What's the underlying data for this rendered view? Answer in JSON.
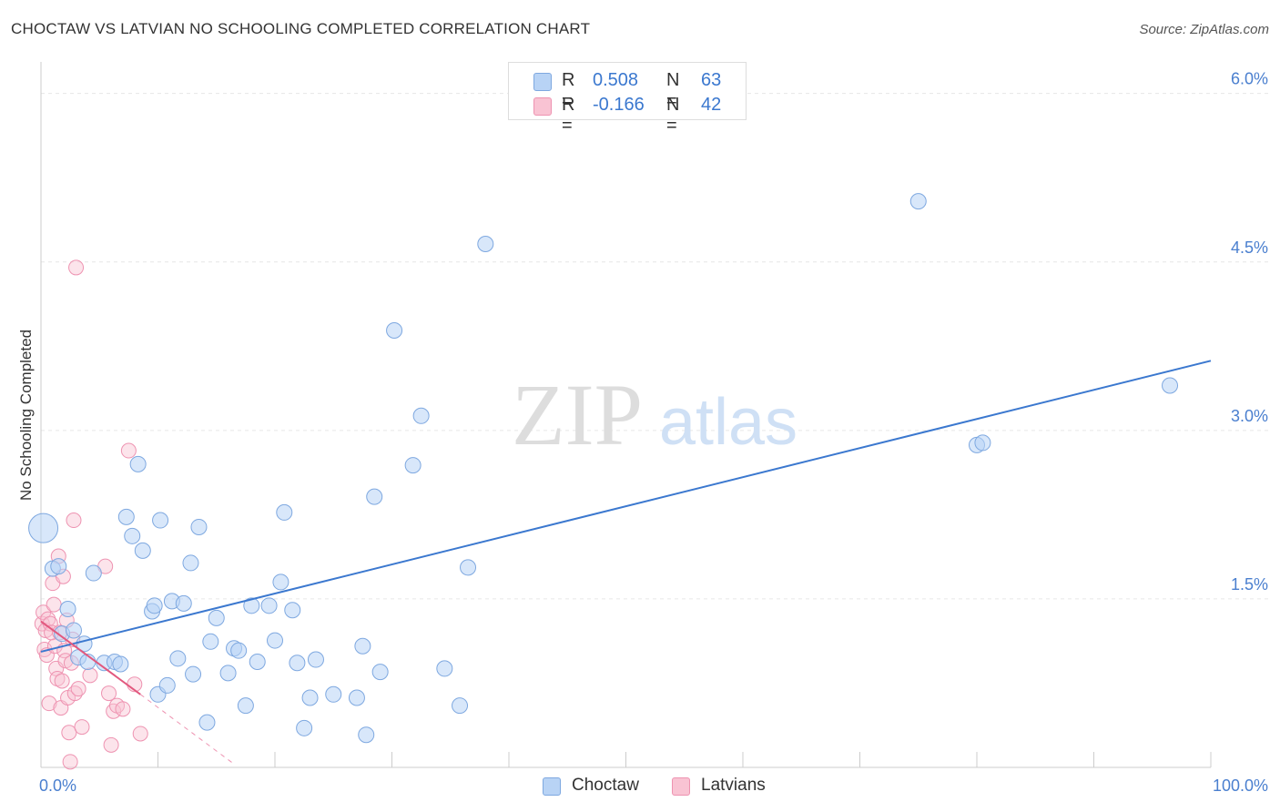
{
  "header": {
    "title": "CHOCTAW VS LATVIAN NO SCHOOLING COMPLETED CORRELATION CHART",
    "source": "Source: ZipAtlas.com"
  },
  "watermark": {
    "zip": "ZIP",
    "atlas": "atlas"
  },
  "legend": {
    "r_label": "R =",
    "n_label": "N =",
    "choctaw": {
      "r": "0.508",
      "n": "63"
    },
    "latvians": {
      "r": "-0.166",
      "n": "42"
    }
  },
  "colors": {
    "choctaw_fill": "#b8d3f5",
    "choctaw_stroke": "#7ea8e0",
    "choctaw_line": "#3b78cf",
    "latvians_fill": "#f9c3d3",
    "latvians_stroke": "#ee93b1",
    "latvians_line": "#e2587e",
    "tick_text": "#4a7fcf",
    "grid": "#e6e6e6",
    "axis": "#cccccc"
  },
  "chart_data": {
    "type": "scatter",
    "title": "CHOCTAW VS LATVIAN NO SCHOOLING COMPLETED CORRELATION CHART",
    "xlabel": "",
    "ylabel": "No Schooling Completed",
    "xlim": [
      0,
      100
    ],
    "ylim": [
      0,
      6.2
    ],
    "x_tick_labels": [
      "0.0%",
      "100.0%"
    ],
    "y_ticks": [
      {
        "value": 1.5,
        "label": "1.5%"
      },
      {
        "value": 3.0,
        "label": "3.0%"
      },
      {
        "value": 4.5,
        "label": "4.5%"
      },
      {
        "value": 6.0,
        "label": "6.0%"
      }
    ],
    "legend_position": "bottom-center",
    "series": [
      {
        "name": "Choctaw",
        "r": 0.508,
        "n": 63,
        "trend": {
          "x": [
            0,
            100
          ],
          "y": [
            1.03,
            3.62
          ],
          "dashed_extension": false
        },
        "points": [
          [
            0.2,
            2.13
          ],
          [
            1.0,
            1.77
          ],
          [
            1.5,
            1.79
          ],
          [
            1.8,
            1.19
          ],
          [
            2.3,
            1.41
          ],
          [
            2.8,
            1.22
          ],
          [
            3.2,
            0.98
          ],
          [
            3.7,
            1.1
          ],
          [
            4.0,
            0.94
          ],
          [
            4.5,
            1.73
          ],
          [
            5.4,
            0.93
          ],
          [
            6.3,
            0.94
          ],
          [
            6.8,
            0.92
          ],
          [
            7.3,
            2.23
          ],
          [
            7.8,
            2.06
          ],
          [
            8.3,
            2.7
          ],
          [
            8.7,
            1.93
          ],
          [
            9.5,
            1.39
          ],
          [
            9.7,
            1.44
          ],
          [
            10.0,
            0.65
          ],
          [
            10.2,
            2.2
          ],
          [
            10.8,
            0.73
          ],
          [
            11.2,
            1.48
          ],
          [
            11.7,
            0.97
          ],
          [
            12.2,
            1.46
          ],
          [
            12.8,
            1.82
          ],
          [
            13.0,
            0.83
          ],
          [
            13.5,
            2.14
          ],
          [
            14.2,
            0.4
          ],
          [
            14.5,
            1.12
          ],
          [
            15.0,
            1.33
          ],
          [
            16.0,
            0.84
          ],
          [
            16.5,
            1.06
          ],
          [
            16.9,
            1.04
          ],
          [
            17.5,
            0.55
          ],
          [
            18.0,
            1.44
          ],
          [
            18.5,
            0.94
          ],
          [
            19.5,
            1.44
          ],
          [
            20.0,
            1.13
          ],
          [
            20.5,
            1.65
          ],
          [
            20.8,
            2.27
          ],
          [
            21.5,
            1.4
          ],
          [
            21.9,
            0.93
          ],
          [
            22.5,
            0.35
          ],
          [
            23.0,
            0.62
          ],
          [
            23.5,
            0.96
          ],
          [
            25.0,
            0.65
          ],
          [
            27.0,
            0.62
          ],
          [
            27.5,
            1.08
          ],
          [
            27.8,
            0.29
          ],
          [
            28.5,
            2.41
          ],
          [
            29.0,
            0.85
          ],
          [
            30.2,
            3.89
          ],
          [
            31.8,
            2.69
          ],
          [
            32.5,
            3.13
          ],
          [
            34.5,
            0.88
          ],
          [
            35.8,
            0.55
          ],
          [
            36.5,
            1.78
          ],
          [
            38.0,
            4.66
          ],
          [
            75.0,
            5.04
          ],
          [
            80.0,
            2.87
          ],
          [
            80.5,
            2.89
          ],
          [
            96.5,
            3.4
          ]
        ]
      },
      {
        "name": "Latvians",
        "r": -0.166,
        "n": 42,
        "trend": {
          "x": [
            0,
            8.5
          ],
          "y": [
            1.3,
            0.65
          ],
          "dashed_extension": true,
          "dashed_to": [
            16.5,
            0.03
          ]
        },
        "points": [
          [
            0.1,
            1.28
          ],
          [
            0.2,
            1.38
          ],
          [
            0.3,
            1.05
          ],
          [
            0.4,
            1.22
          ],
          [
            0.5,
            1.0
          ],
          [
            0.6,
            1.32
          ],
          [
            0.7,
            0.57
          ],
          [
            0.8,
            1.28
          ],
          [
            0.9,
            1.2
          ],
          [
            1.0,
            1.64
          ],
          [
            1.1,
            1.45
          ],
          [
            1.2,
            1.08
          ],
          [
            1.3,
            0.88
          ],
          [
            1.4,
            0.79
          ],
          [
            1.5,
            1.88
          ],
          [
            1.6,
            1.2
          ],
          [
            1.7,
            0.53
          ],
          [
            1.8,
            0.77
          ],
          [
            1.9,
            1.7
          ],
          [
            2.0,
            1.04
          ],
          [
            2.1,
            0.95
          ],
          [
            2.2,
            1.31
          ],
          [
            2.3,
            0.62
          ],
          [
            2.4,
            0.31
          ],
          [
            2.5,
            0.05
          ],
          [
            2.6,
            0.93
          ],
          [
            2.7,
            1.14
          ],
          [
            2.8,
            2.2
          ],
          [
            2.9,
            0.66
          ],
          [
            3.0,
            4.45
          ],
          [
            3.2,
            0.7
          ],
          [
            3.5,
            0.36
          ],
          [
            4.2,
            0.82
          ],
          [
            5.5,
            1.79
          ],
          [
            5.8,
            0.66
          ],
          [
            6.0,
            0.2
          ],
          [
            6.2,
            0.5
          ],
          [
            6.5,
            0.55
          ],
          [
            7.0,
            0.52
          ],
          [
            7.5,
            2.82
          ],
          [
            8.0,
            0.74
          ],
          [
            8.5,
            0.3
          ]
        ]
      }
    ]
  },
  "bottom_legend": {
    "choctaw": "Choctaw",
    "latvians": "Latvians"
  }
}
